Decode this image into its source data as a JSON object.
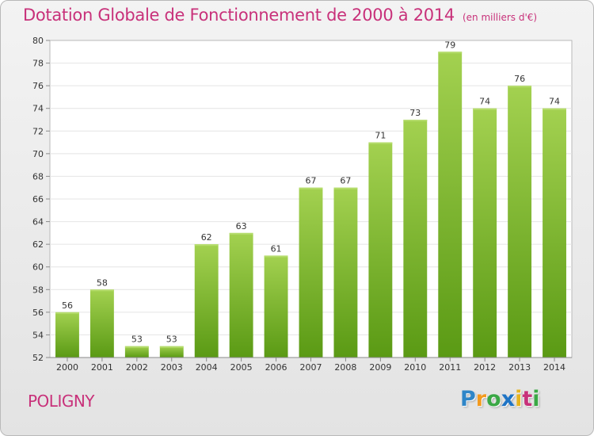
{
  "title": "Dotation Globale de Fonctionnement de 2000 à 2014",
  "unit": "(en milliers d'€)",
  "commune": "POLIGNY",
  "logo": {
    "letters": [
      "P",
      "r",
      "o",
      "x",
      "i",
      "t",
      "i"
    ],
    "colors": [
      "#2f86c8",
      "#f39a1e",
      "#3aa845",
      "#1f74c5",
      "#e6b31e",
      "#c8317a",
      "#3aa845"
    ]
  },
  "colors": {
    "bar_top": "#a3d150",
    "bar_bottom": "#5a9a14",
    "title": "#c8317a"
  },
  "chart_data": {
    "type": "bar",
    "title": "Dotation Globale de Fonctionnement de 2000 à 2014",
    "subtitle": "(en milliers d'€)",
    "xlabel": "",
    "ylabel": "",
    "categories": [
      "2000",
      "2001",
      "2002",
      "2003",
      "2004",
      "2005",
      "2006",
      "2007",
      "2008",
      "2009",
      "2010",
      "2011",
      "2012",
      "2013",
      "2014"
    ],
    "values": [
      56,
      58,
      53,
      53,
      62,
      63,
      61,
      67,
      67,
      71,
      73,
      79,
      74,
      76,
      74
    ],
    "ylim": [
      52,
      80
    ],
    "yticks": [
      52,
      54,
      56,
      58,
      60,
      62,
      64,
      66,
      68,
      70,
      72,
      74,
      76,
      78,
      80
    ],
    "grid": true,
    "legend": "none"
  }
}
